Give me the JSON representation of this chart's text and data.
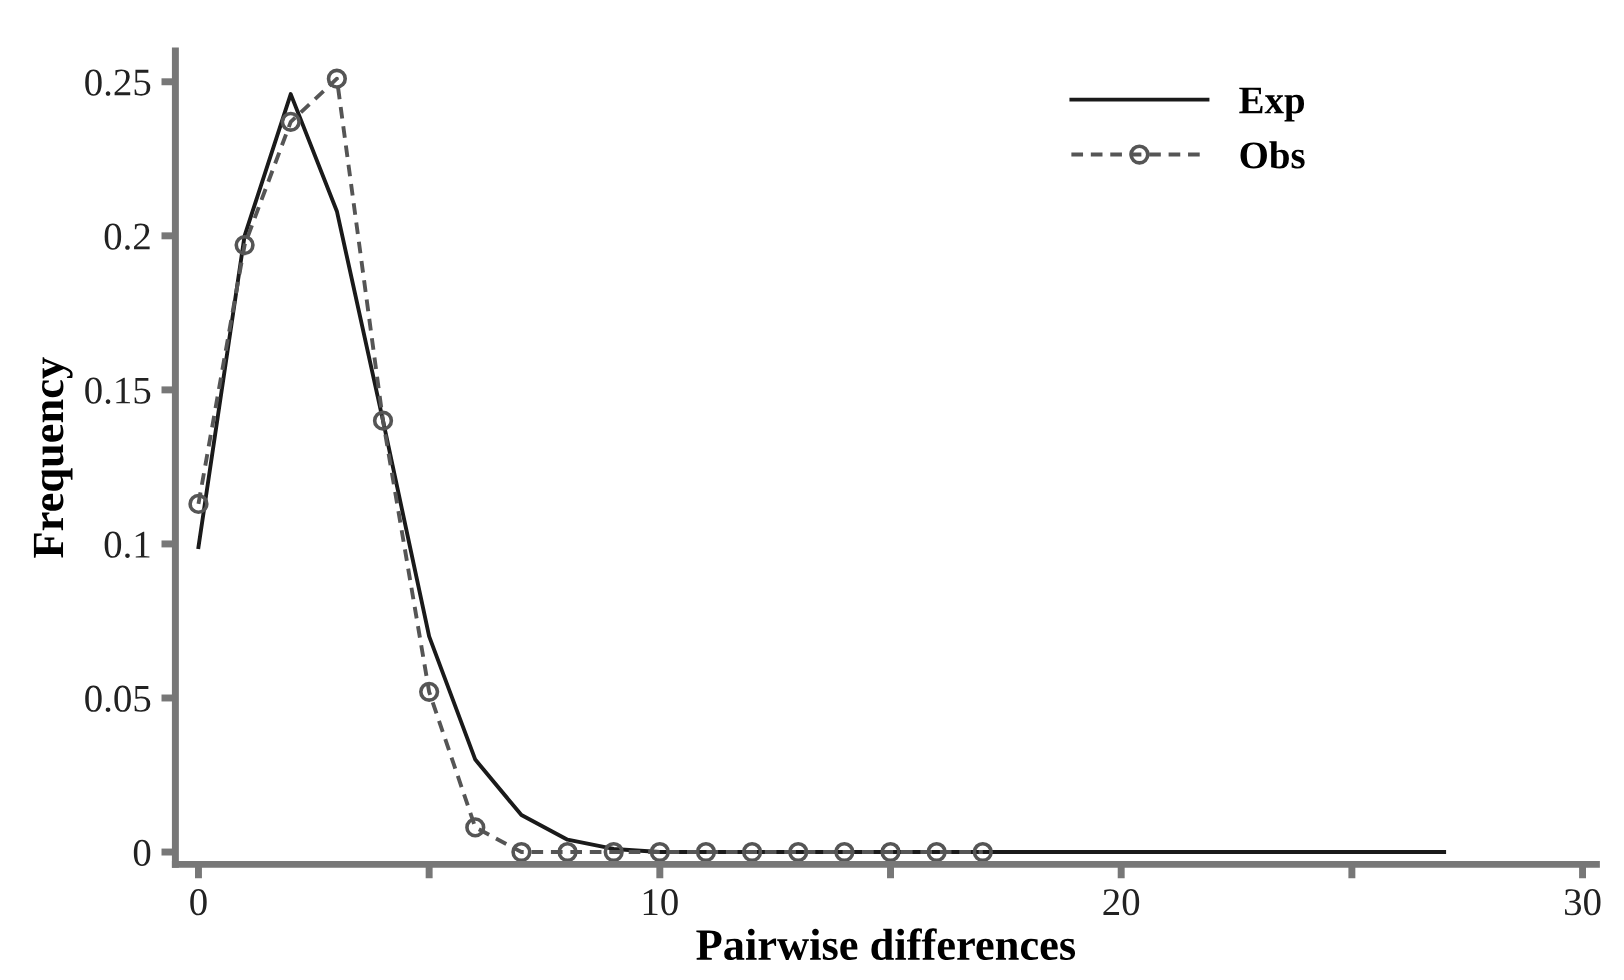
{
  "chart_data": {
    "type": "line",
    "xlabel": "Pairwise differences",
    "ylabel": "Frequency",
    "series": [
      {
        "name": "Exp",
        "color": "#1a1a1a",
        "line_style": "solid",
        "marker": "none",
        "x": [
          0,
          1,
          2,
          3,
          4,
          5,
          6,
          7,
          8,
          9,
          10,
          27
        ],
        "values": [
          0.099,
          0.2,
          0.246,
          0.208,
          0.14,
          0.07,
          0.03,
          0.012,
          0.004,
          0.001,
          0,
          0
        ]
      },
      {
        "name": "Obs",
        "color": "#555555",
        "line_style": "dashed",
        "marker": "circle",
        "x": [
          0,
          1,
          2,
          3,
          4,
          5,
          6,
          7,
          8,
          9,
          10,
          11,
          12,
          13,
          14,
          15,
          16,
          17
        ],
        "values": [
          0.113,
          0.197,
          0.237,
          0.251,
          0.14,
          0.052,
          0.008,
          0,
          0,
          0,
          0,
          0,
          0,
          0,
          0,
          0,
          0,
          0
        ]
      }
    ],
    "xlim": [
      -0.5,
      30.3
    ],
    "ylim": [
      -0.004,
      0.26
    ],
    "xticks": [
      0,
      {
        "value": 5,
        "label": null
      },
      10,
      {
        "value": 15,
        "label": null
      },
      20,
      {
        "value": 25,
        "label": null
      },
      30
    ],
    "yticks": [
      0,
      0.05,
      0.1,
      0.15,
      0.2,
      0.25
    ],
    "grid": false,
    "legend": "top right"
  }
}
